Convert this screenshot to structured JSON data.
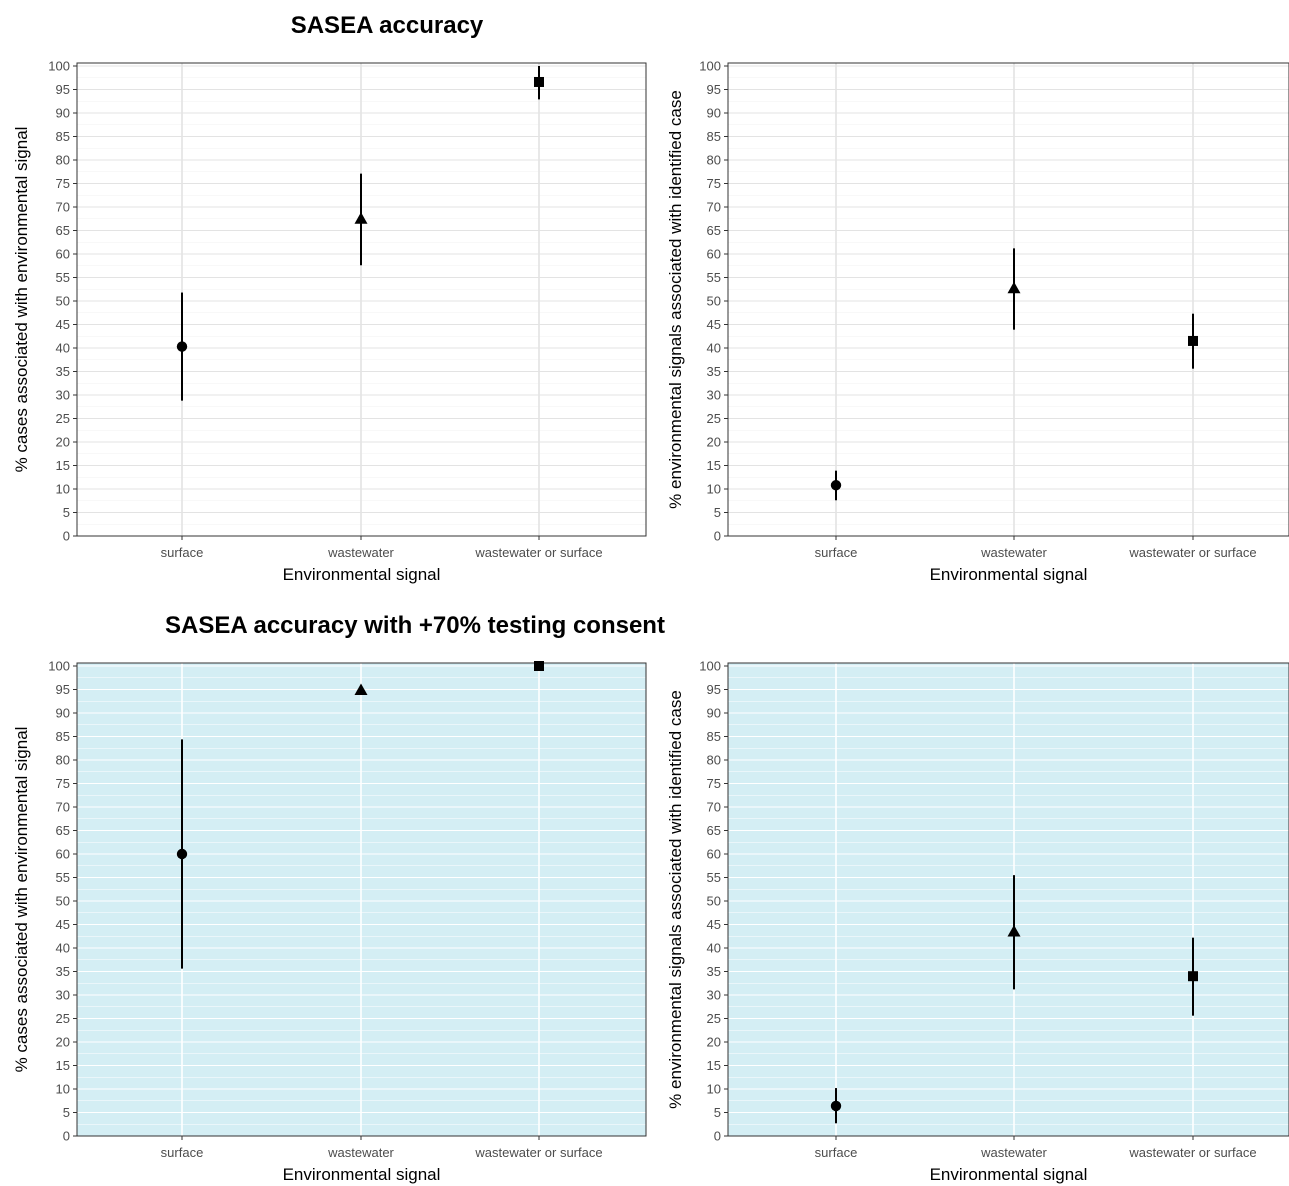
{
  "sections": [
    {
      "title": "SASEA accuracy",
      "background": "#ffffff"
    },
    {
      "title": "SASEA accuracy with +70% testing consent",
      "background": "#d4eef4"
    }
  ],
  "chart_data": [
    {
      "type": "scatter",
      "title": "SASEA accuracy",
      "xlabel": "Environmental signal",
      "ylabel": "% cases associated with environmental signal",
      "categories": [
        "surface",
        "wastewater",
        "wastewater or surface"
      ],
      "ylim": [
        0,
        100
      ],
      "yticks": [
        0,
        5,
        10,
        15,
        20,
        25,
        30,
        35,
        40,
        45,
        50,
        55,
        60,
        65,
        70,
        75,
        80,
        85,
        90,
        95,
        100
      ],
      "grid": true,
      "background": "#ffffff",
      "points": [
        {
          "x": "surface",
          "y": 40.3,
          "lower": 28.8,
          "upper": 51.8,
          "shape": "circle"
        },
        {
          "x": "wastewater",
          "y": 67.5,
          "lower": 57.6,
          "upper": 77.1,
          "shape": "triangle"
        },
        {
          "x": "wastewater or surface",
          "y": 96.6,
          "lower": 92.9,
          "upper": 100,
          "shape": "square"
        }
      ]
    },
    {
      "type": "scatter",
      "title": "",
      "xlabel": "Environmental signal",
      "ylabel": "% environmental signals associated with identified case",
      "categories": [
        "surface",
        "wastewater",
        "wastewater or surface"
      ],
      "ylim": [
        0,
        100
      ],
      "yticks": [
        0,
        5,
        10,
        15,
        20,
        25,
        30,
        35,
        40,
        45,
        50,
        55,
        60,
        65,
        70,
        75,
        80,
        85,
        90,
        95,
        100
      ],
      "grid": true,
      "background": "#ffffff",
      "points": [
        {
          "x": "surface",
          "y": 10.8,
          "lower": 7.6,
          "upper": 13.9,
          "shape": "circle"
        },
        {
          "x": "wastewater",
          "y": 52.7,
          "lower": 43.9,
          "upper": 61.2,
          "shape": "triangle"
        },
        {
          "x": "wastewater or surface",
          "y": 41.5,
          "lower": 35.6,
          "upper": 47.3,
          "shape": "square"
        }
      ]
    },
    {
      "type": "scatter",
      "title": "SASEA accuracy with +70% testing consent",
      "xlabel": "Environmental signal",
      "ylabel": "% cases associated with environmental signal",
      "categories": [
        "surface",
        "wastewater",
        "wastewater or surface"
      ],
      "ylim": [
        0,
        100
      ],
      "yticks": [
        0,
        5,
        10,
        15,
        20,
        25,
        30,
        35,
        40,
        45,
        50,
        55,
        60,
        65,
        70,
        75,
        80,
        85,
        90,
        95,
        100
      ],
      "grid": true,
      "background": "#d4eef4",
      "points": [
        {
          "x": "surface",
          "y": 60,
          "lower": 35.6,
          "upper": 84.4,
          "shape": "circle"
        },
        {
          "x": "wastewater",
          "y": 94.9,
          "lower": 94.9,
          "upper": 94.9,
          "shape": "triangle"
        },
        {
          "x": "wastewater or surface",
          "y": 100,
          "lower": 100,
          "upper": 100,
          "shape": "square"
        }
      ]
    },
    {
      "type": "scatter",
      "title": "",
      "xlabel": "Environmental signal",
      "ylabel": "% environmental signals associated with identified case",
      "categories": [
        "surface",
        "wastewater",
        "wastewater or surface"
      ],
      "ylim": [
        0,
        100
      ],
      "yticks": [
        0,
        5,
        10,
        15,
        20,
        25,
        30,
        35,
        40,
        45,
        50,
        55,
        60,
        65,
        70,
        75,
        80,
        85,
        90,
        95,
        100
      ],
      "grid": true,
      "background": "#d4eef4",
      "points": [
        {
          "x": "surface",
          "y": 6.4,
          "lower": 2.7,
          "upper": 10.2,
          "shape": "circle"
        },
        {
          "x": "wastewater",
          "y": 43.5,
          "lower": 31.2,
          "upper": 55.5,
          "shape": "triangle"
        },
        {
          "x": "wastewater or surface",
          "y": 34,
          "lower": 25.6,
          "upper": 42.2,
          "shape": "square"
        }
      ]
    }
  ]
}
